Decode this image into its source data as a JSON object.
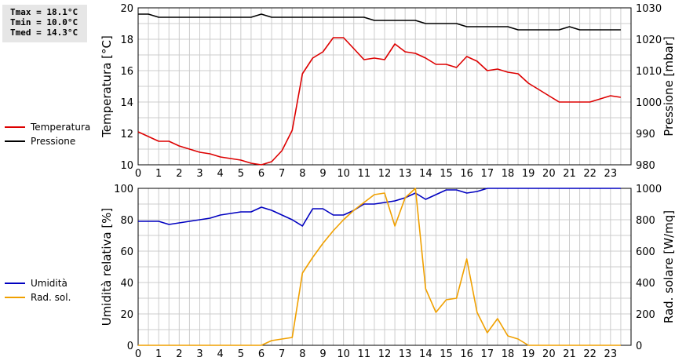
{
  "stats": {
    "tmax": "Tmax = 18.1°C",
    "tmin": "Tmin = 10.0°C",
    "tmed": "Tmed = 14.3°C"
  },
  "colors": {
    "temperature": "#dd0000",
    "pressure": "#000000",
    "humidity": "#0000c0",
    "radiation": "#f0a000",
    "grid": "#cccccc"
  },
  "chart_data": [
    {
      "type": "line",
      "x_ticks": [
        "0",
        "1",
        "2",
        "3",
        "4",
        "5",
        "6",
        "7",
        "8",
        "9",
        "10",
        "11",
        "12",
        "13",
        "14",
        "15",
        "16",
        "17",
        "18",
        "19",
        "20",
        "21",
        "22",
        "23"
      ],
      "xlim": [
        0,
        24
      ],
      "ylabel": "Temperatura [°C]",
      "ylim": [
        10,
        20
      ],
      "y_ticks": [
        "10",
        "12",
        "14",
        "16",
        "18",
        "20"
      ],
      "y2label": "Pressione [mbar]",
      "y2lim": [
        980,
        1030
      ],
      "y2_ticks": [
        "980",
        "990",
        "1000",
        "1010",
        "1020",
        "1030"
      ],
      "grid": true,
      "legend_position": "left",
      "series": [
        {
          "name": "Temperatura",
          "axis": "left",
          "color": "#dd0000",
          "x": [
            0,
            0.5,
            1,
            1.5,
            2,
            2.5,
            3,
            3.5,
            4,
            4.5,
            5,
            5.5,
            6,
            6.5,
            7,
            7.5,
            8,
            8.5,
            9,
            9.5,
            10,
            10.5,
            11,
            11.5,
            12,
            12.5,
            13,
            13.5,
            14,
            14.5,
            15,
            15.5,
            16,
            16.5,
            17,
            17.5,
            18,
            18.5,
            19,
            19.5,
            20,
            20.5,
            21,
            21.5,
            22,
            22.5,
            23,
            23.5
          ],
          "y": [
            12.1,
            11.8,
            11.5,
            11.5,
            11.2,
            11.0,
            10.8,
            10.7,
            10.5,
            10.4,
            10.3,
            10.1,
            10.0,
            10.2,
            10.9,
            12.2,
            15.8,
            16.8,
            17.2,
            18.1,
            18.1,
            17.4,
            16.7,
            16.8,
            16.7,
            17.7,
            17.2,
            17.1,
            16.8,
            16.4,
            16.4,
            16.2,
            16.9,
            16.6,
            16.0,
            16.1,
            15.9,
            15.8,
            15.2,
            14.8,
            14.4,
            14.0,
            14.0,
            14.0,
            14.0,
            14.2,
            14.4,
            14.3
          ]
        },
        {
          "name": "Pressione",
          "axis": "right",
          "color": "#000000",
          "x": [
            0,
            0.5,
            1,
            1.5,
            2,
            2.5,
            3,
            3.5,
            4,
            4.5,
            5,
            5.5,
            6,
            6.5,
            7,
            7.5,
            8,
            8.5,
            9,
            9.5,
            10,
            10.5,
            11,
            11.5,
            12,
            12.5,
            13,
            13.5,
            14,
            14.5,
            15,
            15.5,
            16,
            16.5,
            17,
            17.5,
            18,
            18.5,
            19,
            19.5,
            20,
            20.5,
            21,
            21.5,
            22,
            22.5,
            23,
            23.5
          ],
          "y": [
            1028,
            1028,
            1027,
            1027,
            1027,
            1027,
            1027,
            1027,
            1027,
            1027,
            1027,
            1027,
            1028,
            1027,
            1027,
            1027,
            1027,
            1027,
            1027,
            1027,
            1027,
            1027,
            1027,
            1026,
            1026,
            1026,
            1026,
            1026,
            1025,
            1025,
            1025,
            1025,
            1024,
            1024,
            1024,
            1024,
            1024,
            1023,
            1023,
            1023,
            1023,
            1023,
            1024,
            1023,
            1023,
            1023,
            1023,
            1023
          ]
        }
      ]
    },
    {
      "type": "line",
      "x_ticks": [
        "0",
        "1",
        "2",
        "3",
        "4",
        "5",
        "6",
        "7",
        "8",
        "9",
        "10",
        "11",
        "12",
        "13",
        "14",
        "15",
        "16",
        "17",
        "18",
        "19",
        "20",
        "21",
        "22",
        "23"
      ],
      "xlim": [
        0,
        24
      ],
      "ylabel": "Umidità relativa [%]",
      "ylim": [
        0,
        100
      ],
      "y_ticks": [
        "0",
        "20",
        "40",
        "60",
        "80",
        "100"
      ],
      "y2label": "Rad. solare [W/mq]",
      "y2lim": [
        0,
        1000
      ],
      "y2_ticks": [
        "0",
        "200",
        "400",
        "600",
        "800",
        "1000"
      ],
      "grid": true,
      "legend_position": "left",
      "series": [
        {
          "name": "Umidità",
          "axis": "left",
          "color": "#0000c0",
          "x": [
            0,
            0.5,
            1,
            1.5,
            2,
            2.5,
            3,
            3.5,
            4,
            4.5,
            5,
            5.5,
            6,
            6.5,
            7,
            7.5,
            8,
            8.5,
            9,
            9.5,
            10,
            10.5,
            11,
            11.5,
            12,
            12.5,
            13,
            13.5,
            14,
            14.5,
            15,
            15.5,
            16,
            16.5,
            17,
            17.5,
            18,
            18.5,
            19,
            19.5,
            20,
            20.5,
            21,
            21.5,
            22,
            22.5,
            23,
            23.5
          ],
          "y": [
            79,
            79,
            79,
            77,
            78,
            79,
            80,
            81,
            83,
            84,
            85,
            85,
            88,
            86,
            83,
            80,
            76,
            87,
            87,
            83,
            83,
            86,
            90,
            90,
            91,
            92,
            94,
            97,
            93,
            96,
            99,
            99,
            97,
            98,
            100,
            100,
            100,
            100,
            100,
            100,
            100,
            100,
            100,
            100,
            100,
            100,
            100,
            100
          ]
        },
        {
          "name": "Rad. sol.",
          "axis": "right",
          "color": "#f0a000",
          "x": [
            0,
            0.5,
            1,
            1.5,
            2,
            2.5,
            3,
            3.5,
            4,
            4.5,
            5,
            5.5,
            6,
            6.5,
            7,
            7.5,
            8,
            8.5,
            9,
            9.5,
            10,
            10.5,
            11,
            11.5,
            12,
            12.5,
            13,
            13.5,
            14,
            14.5,
            15,
            15.5,
            16,
            16.5,
            17,
            17.5,
            18,
            18.5,
            19,
            19.5,
            20,
            20.5,
            21,
            21.5,
            22,
            22.5,
            23,
            23.5
          ],
          "y": [
            0,
            0,
            0,
            0,
            0,
            0,
            0,
            0,
            0,
            0,
            0,
            0,
            0,
            30,
            40,
            50,
            460,
            560,
            650,
            730,
            800,
            860,
            910,
            960,
            970,
            760,
            940,
            1000,
            360,
            210,
            290,
            300,
            550,
            210,
            80,
            170,
            60,
            40,
            0,
            0,
            0,
            0,
            0,
            0,
            0,
            0,
            0,
            0
          ]
        }
      ]
    }
  ]
}
